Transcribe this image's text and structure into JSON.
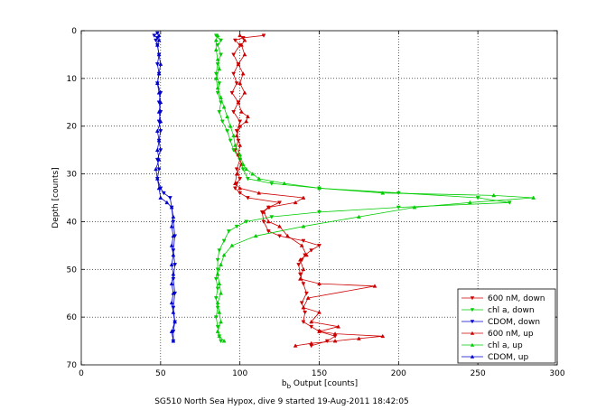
{
  "chart_data": {
    "type": "line",
    "xlabel_main": "b",
    "xlabel_sub": "b",
    "xlabel_rest": " Output [counts]",
    "ylabel": "Depth [counts]",
    "caption": "SG510 North Sea Hypox, dive 9 started 19-Aug-2011 18:42:05",
    "xlim": [
      0,
      300
    ],
    "ylim": [
      0,
      70
    ],
    "y_reversed": true,
    "xticks": [
      0,
      50,
      100,
      150,
      200,
      250,
      300
    ],
    "yticks": [
      0,
      10,
      20,
      30,
      40,
      50,
      60,
      70
    ],
    "grid": true,
    "legend_position": "bottom-right",
    "series": [
      {
        "name": "600 nM, down",
        "color": "#cc0000",
        "marker": "triangle-down",
        "points": [
          [
            115,
            1
          ],
          [
            102,
            1.5
          ],
          [
            97,
            2
          ],
          [
            100,
            3
          ],
          [
            96,
            5
          ],
          [
            99,
            7
          ],
          [
            96,
            9
          ],
          [
            98,
            11
          ],
          [
            95,
            13
          ],
          [
            99,
            15
          ],
          [
            96,
            17
          ],
          [
            100,
            19
          ],
          [
            98,
            21
          ],
          [
            99,
            23
          ],
          [
            97,
            25
          ],
          [
            100,
            27
          ],
          [
            98,
            29
          ],
          [
            100,
            31
          ],
          [
            98,
            32
          ],
          [
            97,
            33
          ],
          [
            100,
            34
          ],
          [
            105,
            35
          ],
          [
            125,
            36
          ],
          [
            118,
            37
          ],
          [
            114,
            38
          ],
          [
            115,
            40
          ],
          [
            118,
            42
          ],
          [
            125,
            43
          ],
          [
            140,
            44
          ],
          [
            150,
            45
          ],
          [
            145,
            46
          ],
          [
            141,
            47
          ],
          [
            139,
            48
          ],
          [
            137,
            49
          ],
          [
            138,
            51
          ],
          [
            140,
            53
          ],
          [
            142,
            55
          ],
          [
            139,
            57
          ],
          [
            141,
            59
          ],
          [
            140,
            61
          ],
          [
            145,
            62
          ],
          [
            150,
            63
          ],
          [
            160,
            64
          ],
          [
            155,
            65
          ],
          [
            145,
            66
          ]
        ]
      },
      {
        "name": "chl a, down",
        "color": "#00cc00",
        "marker": "triangle-down",
        "points": [
          [
            85,
            1
          ],
          [
            88,
            2
          ],
          [
            86,
            3
          ],
          [
            88,
            5
          ],
          [
            86,
            7
          ],
          [
            85,
            9
          ],
          [
            87,
            11
          ],
          [
            86,
            13
          ],
          [
            88,
            15
          ],
          [
            87,
            17
          ],
          [
            89,
            19
          ],
          [
            92,
            21
          ],
          [
            94,
            23
          ],
          [
            96,
            25
          ],
          [
            100,
            27
          ],
          [
            102,
            29
          ],
          [
            105,
            31
          ],
          [
            120,
            32
          ],
          [
            150,
            33
          ],
          [
            200,
            34
          ],
          [
            250,
            35
          ],
          [
            270,
            36
          ],
          [
            200,
            37
          ],
          [
            150,
            38
          ],
          [
            120,
            39
          ],
          [
            104,
            40
          ],
          [
            98,
            41
          ],
          [
            93,
            42
          ],
          [
            90,
            44
          ],
          [
            87,
            46
          ],
          [
            86,
            48
          ],
          [
            86,
            50
          ],
          [
            85,
            52
          ],
          [
            86,
            54
          ],
          [
            85,
            56
          ],
          [
            86,
            58
          ],
          [
            85,
            60
          ],
          [
            86,
            62
          ],
          [
            87,
            64
          ],
          [
            88,
            65
          ]
        ]
      },
      {
        "name": "CDOM, down",
        "color": "#0000cc",
        "marker": "triangle-down",
        "points": [
          [
            48,
            0.5
          ],
          [
            46,
            1
          ],
          [
            48,
            1.5
          ],
          [
            47,
            2
          ],
          [
            48,
            3
          ],
          [
            49,
            5
          ],
          [
            48,
            7
          ],
          [
            49,
            9
          ],
          [
            48,
            11
          ],
          [
            50,
            13
          ],
          [
            49,
            15
          ],
          [
            50,
            17
          ],
          [
            49,
            19
          ],
          [
            50,
            21
          ],
          [
            49,
            23
          ],
          [
            50,
            25
          ],
          [
            48,
            27
          ],
          [
            49,
            29
          ],
          [
            48,
            31
          ],
          [
            50,
            33
          ],
          [
            52,
            34
          ],
          [
            56,
            35
          ],
          [
            57,
            37
          ],
          [
            58,
            40
          ],
          [
            59,
            43
          ],
          [
            58,
            46
          ],
          [
            59,
            49
          ],
          [
            58,
            52
          ],
          [
            59,
            55
          ],
          [
            58,
            58
          ],
          [
            59,
            61
          ],
          [
            58,
            63
          ],
          [
            58,
            65
          ]
        ]
      },
      {
        "name": "600 nM, up",
        "color": "#cc0000",
        "marker": "triangle-up",
        "points": [
          [
            135,
            66
          ],
          [
            145,
            65.5
          ],
          [
            160,
            65
          ],
          [
            175,
            64.5
          ],
          [
            190,
            64
          ],
          [
            160,
            63.5
          ],
          [
            150,
            63
          ],
          [
            162,
            62
          ],
          [
            145,
            61
          ],
          [
            150,
            59
          ],
          [
            140,
            58
          ],
          [
            143,
            56
          ],
          [
            185,
            53.5
          ],
          [
            150,
            53
          ],
          [
            138,
            52
          ],
          [
            140,
            50
          ],
          [
            138,
            48
          ],
          [
            142,
            47
          ],
          [
            139,
            45
          ],
          [
            130,
            43
          ],
          [
            125,
            41
          ],
          [
            118,
            40
          ],
          [
            115,
            38
          ],
          [
            118,
            37
          ],
          [
            135,
            36
          ],
          [
            140,
            35
          ],
          [
            112,
            34
          ],
          [
            100,
            33
          ],
          [
            97,
            32
          ],
          [
            98,
            30
          ],
          [
            101,
            28
          ],
          [
            99,
            26
          ],
          [
            100,
            24
          ],
          [
            98,
            22
          ],
          [
            100,
            20
          ],
          [
            104,
            19
          ],
          [
            105,
            18
          ],
          [
            101,
            17
          ],
          [
            99,
            15
          ],
          [
            103,
            13
          ],
          [
            100,
            11
          ],
          [
            102,
            9
          ],
          [
            99,
            7
          ],
          [
            103,
            5
          ],
          [
            101,
            3
          ],
          [
            103,
            2
          ],
          [
            100,
            1
          ]
        ]
      },
      {
        "name": "chl a, up",
        "color": "#00cc00",
        "marker": "triangle-up",
        "points": [
          [
            90,
            65
          ],
          [
            87,
            64
          ],
          [
            86,
            63
          ],
          [
            88,
            61
          ],
          [
            87,
            59
          ],
          [
            86,
            57
          ],
          [
            88,
            55
          ],
          [
            87,
            53
          ],
          [
            86,
            51
          ],
          [
            88,
            49
          ],
          [
            90,
            47
          ],
          [
            95,
            45
          ],
          [
            110,
            43
          ],
          [
            140,
            41
          ],
          [
            175,
            39
          ],
          [
            210,
            37
          ],
          [
            245,
            36
          ],
          [
            285,
            35
          ],
          [
            260,
            34.5
          ],
          [
            190,
            34
          ],
          [
            150,
            33
          ],
          [
            128,
            32
          ],
          [
            112,
            31
          ],
          [
            108,
            30
          ],
          [
            104,
            29
          ],
          [
            102,
            28
          ],
          [
            100,
            26
          ],
          [
            97,
            24
          ],
          [
            96,
            22
          ],
          [
            94,
            20
          ],
          [
            92,
            18
          ],
          [
            90,
            16
          ],
          [
            88,
            14
          ],
          [
            86,
            12
          ],
          [
            85,
            10
          ],
          [
            87,
            8
          ],
          [
            86,
            6
          ],
          [
            85,
            4
          ],
          [
            85,
            2
          ],
          [
            86,
            1
          ]
        ]
      },
      {
        "name": "CDOM, up",
        "color": "#0000cc",
        "marker": "triangle-up",
        "points": [
          [
            58,
            65
          ],
          [
            57,
            63
          ],
          [
            59,
            61
          ],
          [
            58,
            59
          ],
          [
            57,
            57
          ],
          [
            58,
            55
          ],
          [
            57,
            53
          ],
          [
            58,
            51
          ],
          [
            57,
            49
          ],
          [
            58,
            47
          ],
          [
            57,
            45
          ],
          [
            58,
            43
          ],
          [
            57,
            41
          ],
          [
            58,
            39
          ],
          [
            57,
            37
          ],
          [
            54,
            36
          ],
          [
            50,
            35
          ],
          [
            49,
            33
          ],
          [
            48,
            31
          ],
          [
            47,
            29
          ],
          [
            49,
            27
          ],
          [
            48,
            25
          ],
          [
            49,
            23
          ],
          [
            48,
            21
          ],
          [
            50,
            19
          ],
          [
            49,
            17
          ],
          [
            50,
            15
          ],
          [
            49,
            13
          ],
          [
            48,
            11
          ],
          [
            49,
            9
          ],
          [
            50,
            7
          ],
          [
            49,
            5
          ],
          [
            48,
            3
          ],
          [
            49,
            2
          ],
          [
            49,
            1
          ]
        ]
      }
    ]
  }
}
